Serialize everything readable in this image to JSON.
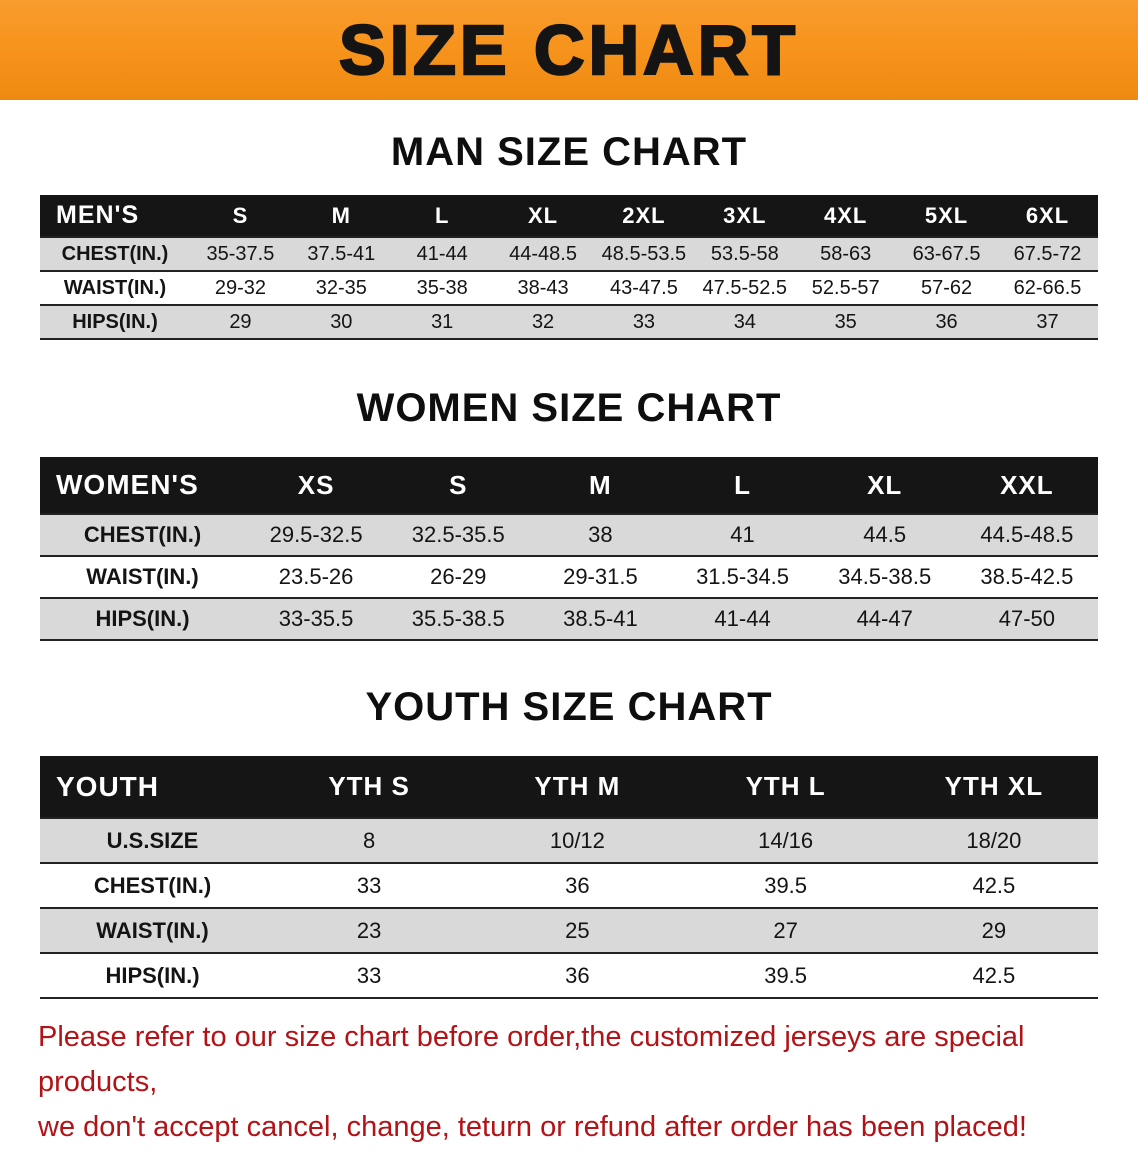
{
  "banner": {
    "title": "SIZE CHART"
  },
  "sections": [
    {
      "heading": "MAN SIZE CHART",
      "table": {
        "label": "MEN'S",
        "columns": [
          "S",
          "M",
          "L",
          "XL",
          "2XL",
          "3XL",
          "4XL",
          "5XL",
          "6XL"
        ],
        "rows": [
          {
            "label": "CHEST(IN.)",
            "values": [
              "35-37.5",
              "37.5-41",
              "41-44",
              "44-48.5",
              "48.5-53.5",
              "53.5-58",
              "58-63",
              "63-67.5",
              "67.5-72"
            ]
          },
          {
            "label": "WAIST(IN.)",
            "values": [
              "29-32",
              "32-35",
              "35-38",
              "38-43",
              "43-47.5",
              "47.5-52.5",
              "52.5-57",
              "57-62",
              "62-66.5"
            ]
          },
          {
            "label": "HIPS(IN.)",
            "values": [
              "29",
              "30",
              "31",
              "32",
              "33",
              "34",
              "35",
              "36",
              "37"
            ]
          }
        ]
      }
    },
    {
      "heading": "WOMEN SIZE CHART",
      "table": {
        "label": "WOMEN'S",
        "columns": [
          "XS",
          "S",
          "M",
          "L",
          "XL",
          "XXL"
        ],
        "rows": [
          {
            "label": "CHEST(IN.)",
            "values": [
              "29.5-32.5",
              "32.5-35.5",
              "38",
              "41",
              "44.5",
              "44.5-48.5"
            ]
          },
          {
            "label": "WAIST(IN.)",
            "values": [
              "23.5-26",
              "26-29",
              "29-31.5",
              "31.5-34.5",
              "34.5-38.5",
              "38.5-42.5"
            ]
          },
          {
            "label": "HIPS(IN.)",
            "values": [
              "33-35.5",
              "35.5-38.5",
              "38.5-41",
              "41-44",
              "44-47",
              "47-50"
            ]
          }
        ]
      }
    },
    {
      "heading": "YOUTH SIZE CHART",
      "table": {
        "label": "YOUTH",
        "columns": [
          "YTH S",
          "YTH M",
          "YTH L",
          "YTH XL"
        ],
        "rows": [
          {
            "label": "U.S.SIZE",
            "values": [
              "8",
              "10/12",
              "14/16",
              "18/20"
            ]
          },
          {
            "label": "CHEST(IN.)",
            "values": [
              "33",
              "36",
              "39.5",
              "42.5"
            ]
          },
          {
            "label": "WAIST(IN.)",
            "values": [
              "23",
              "25",
              "27",
              "29"
            ]
          },
          {
            "label": "HIPS(IN.)",
            "values": [
              "33",
              "36",
              "39.5",
              "42.5"
            ]
          }
        ]
      }
    }
  ],
  "disclaimer": {
    "line1": "Please refer to our size chart before order,the customized jerseys are special products,",
    "line2": "we don't accept cancel, change, teturn or refund after order has been placed!"
  },
  "colors": {
    "banner_bg": "#f7941d",
    "banner_text": "#141414",
    "header_bg": "#151515",
    "header_text": "#ffffff",
    "row_alt_bg": "#d9d9d9",
    "row_bg": "#ffffff",
    "text": "#141414",
    "disclaimer": "#b31217"
  }
}
